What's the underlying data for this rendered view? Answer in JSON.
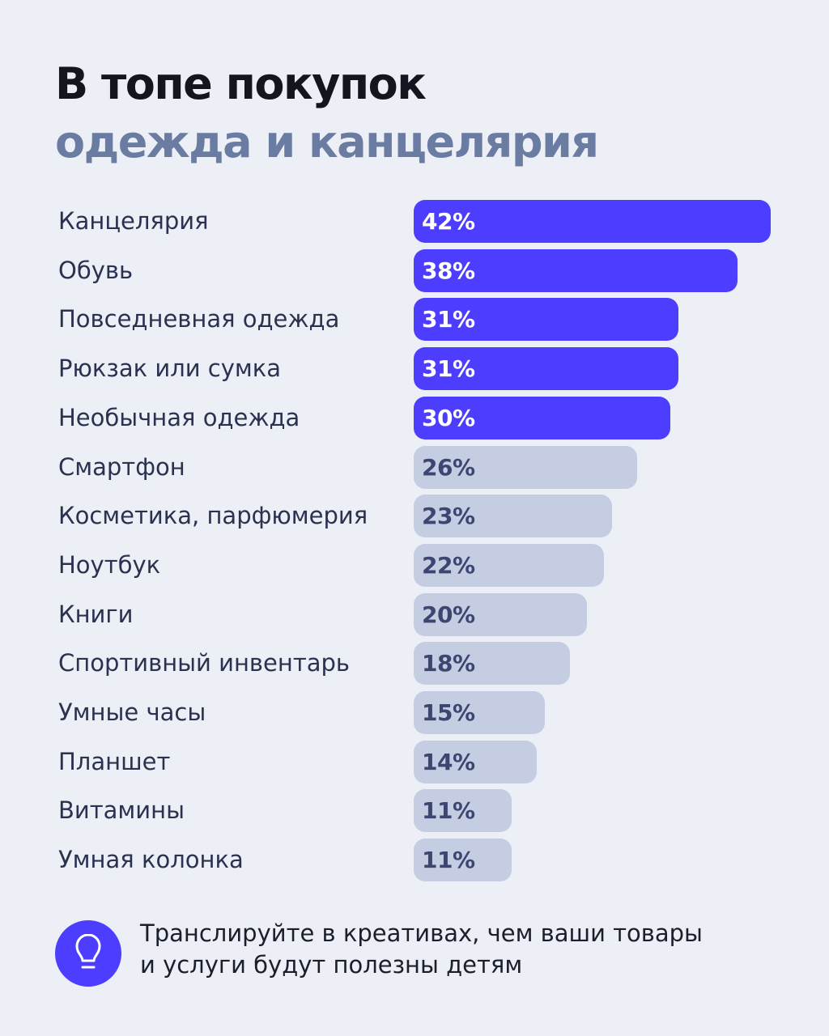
{
  "header": {
    "title": "В топе покупок",
    "subtitle": "одежда и канцелярия"
  },
  "chart_data": {
    "type": "bar",
    "orientation": "horizontal",
    "categories": [
      "Канцелярия",
      "Обувь",
      "Повседневная одежда",
      "Рюкзак или сумка",
      "Необычная одежда",
      "Смартфон",
      "Косметика, парфюмерия",
      "Ноутбук",
      "Книги",
      "Спортивный инвентарь",
      "Умные часы",
      "Планшет",
      "Витамины",
      "Умная колонка"
    ],
    "values": [
      42,
      38,
      31,
      31,
      30,
      26,
      23,
      22,
      20,
      18,
      15,
      14,
      11,
      11
    ],
    "data_labels": [
      "42%",
      "38%",
      "31%",
      "31%",
      "30%",
      "26%",
      "23%",
      "22%",
      "20%",
      "18%",
      "15%",
      "14%",
      "11%",
      "11%"
    ],
    "unit": "%",
    "highlighted_count": 5,
    "colors": {
      "highlight": "#4d3dff",
      "highlight_text": "#ffffff",
      "normal": "#c5cde2",
      "normal_text": "#3c4670"
    },
    "grid": false
  },
  "footer": {
    "icon": "lightbulb-icon",
    "text_line1": "Транслируйте в креативах, чем ваши товары",
    "text_line2": "и услуги будут полезны детям"
  }
}
